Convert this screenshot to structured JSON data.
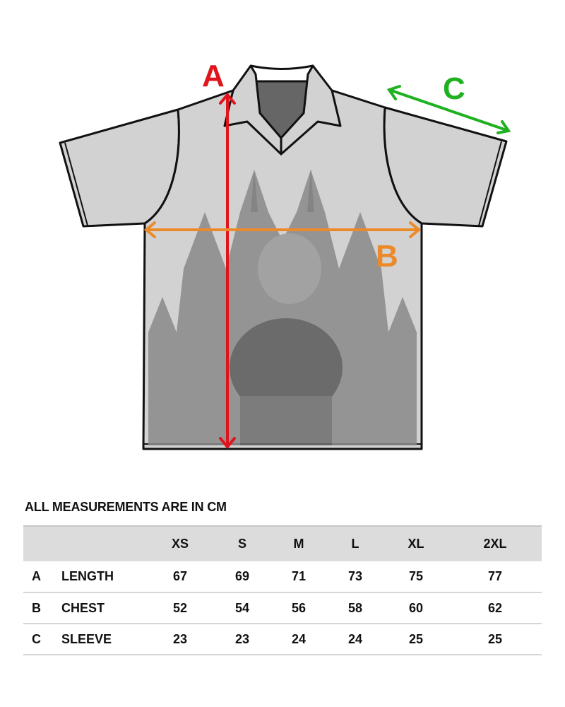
{
  "diagram": {
    "labels": {
      "length": "A",
      "chest": "B",
      "sleeve": "C"
    },
    "colors": {
      "length": "#e0141b",
      "chest": "#ec8a2a",
      "sleeve": "#1fb11f",
      "shirt": "#d2d2d2",
      "print": "#7a7a7a"
    }
  },
  "caption": "ALL MEASUREMENTS ARE IN CM",
  "table": {
    "sizes": [
      "XS",
      "S",
      "M",
      "L",
      "XL",
      "2XL"
    ],
    "rows": [
      {
        "letter": "A",
        "name": "LENGTH",
        "values": [
          "67",
          "69",
          "71",
          "73",
          "75",
          "77"
        ]
      },
      {
        "letter": "B",
        "name": "CHEST",
        "values": [
          "52",
          "54",
          "56",
          "58",
          "60",
          "62"
        ]
      },
      {
        "letter": "C",
        "name": "SLEEVE",
        "values": [
          "23",
          "23",
          "24",
          "24",
          "25",
          "25"
        ]
      }
    ]
  }
}
